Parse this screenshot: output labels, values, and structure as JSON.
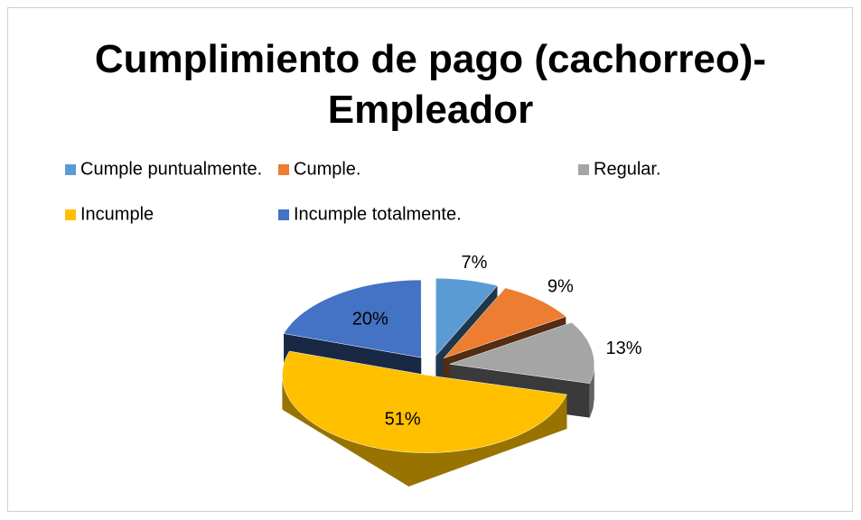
{
  "chart_data": {
    "type": "pie",
    "title": "Cumplimiento de pago (cachorreo)-Empleador",
    "categories": [
      "Cumple puntualmente.",
      "Cumple.",
      "Regular.",
      "Incumple",
      "Incumple totalmente."
    ],
    "values": [
      7,
      9,
      13,
      51,
      20
    ],
    "value_labels": [
      "7%",
      "9%",
      "13%",
      "51%",
      "20%"
    ],
    "colors": [
      "#5b9bd5",
      "#ed7d31",
      "#a5a5a5",
      "#ffc000",
      "#4472c4"
    ],
    "legend": "top"
  }
}
